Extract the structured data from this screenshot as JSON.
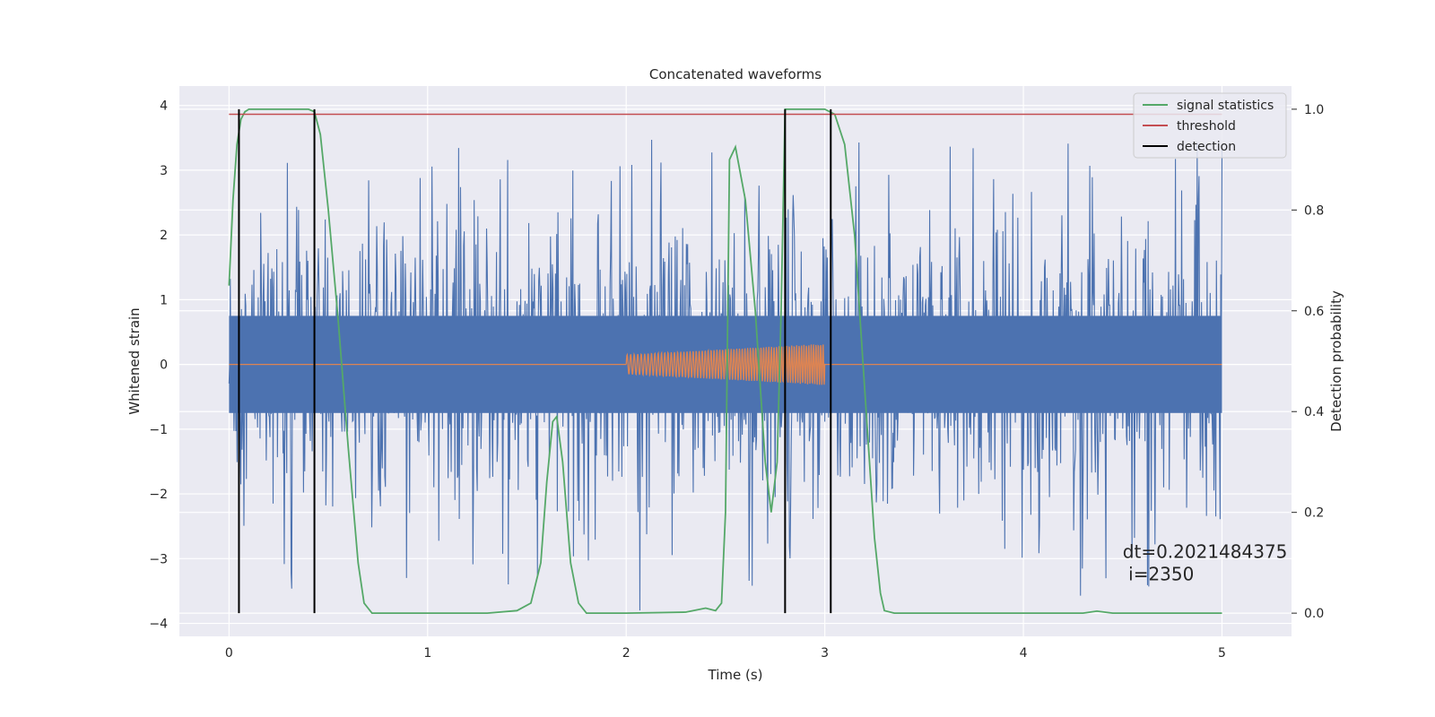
{
  "chart_data": {
    "type": "line",
    "title": "Concatenated waveforms",
    "xlabel": "Time (s)",
    "ylabel_left": "Whitened strain",
    "ylabel_right": "Detection probability",
    "xlim": [
      -0.25,
      5.35
    ],
    "ylim_left": [
      -4.2,
      4.3
    ],
    "ylim_right": [
      -0.046,
      1.046
    ],
    "x_ticks": [
      "0",
      "1",
      "2",
      "3",
      "4",
      "5"
    ],
    "y_left_ticks": [
      "4",
      "3",
      "2",
      "1",
      "0",
      "−1",
      "−2",
      "−3",
      "−4"
    ],
    "y_right_ticks": [
      "1.0",
      "0.8",
      "0.6",
      "0.4",
      "0.2",
      "0.0"
    ],
    "grid": true,
    "legend_position": "top-right",
    "legend": [
      {
        "label": "signal statistics",
        "color": "#55a868"
      },
      {
        "label": "threshold",
        "color": "#c44e52"
      },
      {
        "label": "detection",
        "color": "#000000"
      }
    ],
    "series": [
      {
        "role": "whitened-strain-noise",
        "color": "#4c72b0",
        "axis": "left",
        "x_range": [
          0,
          5
        ],
        "core_amplitude": 0.75,
        "spike_range": [
          -3.8,
          3.9
        ]
      },
      {
        "role": "injected-waveform",
        "color": "#dd8452",
        "axis": "left",
        "start": 0.0,
        "end": 5.0,
        "chirp_start": 2.0,
        "chirp_end": 3.0,
        "amplitude_start": 0.15,
        "amplitude_end": 0.32
      },
      {
        "name": "signal statistics",
        "color": "#55a868",
        "axis": "right",
        "x": [
          0.0,
          0.02,
          0.04,
          0.06,
          0.08,
          0.1,
          0.2,
          0.3,
          0.4,
          0.43,
          0.46,
          0.5,
          0.55,
          0.6,
          0.65,
          0.68,
          0.72,
          1.0,
          1.3,
          1.45,
          1.52,
          1.57,
          1.6,
          1.63,
          1.65,
          1.68,
          1.72,
          1.76,
          1.8,
          2.0,
          2.3,
          2.4,
          2.45,
          2.48,
          2.5,
          2.52,
          2.55,
          2.6,
          2.65,
          2.7,
          2.73,
          2.76,
          2.78,
          2.8,
          2.85,
          3.0,
          3.05,
          3.1,
          3.15,
          3.2,
          3.25,
          3.28,
          3.3,
          3.35,
          4.0,
          4.3,
          4.37,
          4.45,
          5.0
        ],
        "y": [
          0.65,
          0.82,
          0.93,
          0.98,
          0.995,
          1.0,
          1.0,
          1.0,
          1.0,
          0.995,
          0.95,
          0.8,
          0.58,
          0.33,
          0.1,
          0.02,
          0.0,
          0.0,
          0.0,
          0.005,
          0.02,
          0.1,
          0.26,
          0.38,
          0.39,
          0.3,
          0.1,
          0.02,
          0.0,
          0.0,
          0.002,
          0.01,
          0.005,
          0.02,
          0.2,
          0.9,
          0.925,
          0.82,
          0.6,
          0.3,
          0.2,
          0.3,
          0.6,
          1.0,
          1.0,
          1.0,
          0.99,
          0.93,
          0.75,
          0.45,
          0.15,
          0.04,
          0.005,
          0.0,
          0.0,
          0.0,
          0.004,
          0.0,
          0.0
        ]
      },
      {
        "name": "threshold",
        "color": "#c44e52",
        "axis": "right",
        "x": [
          0.0,
          5.0
        ],
        "y": [
          0.99,
          0.99
        ]
      }
    ],
    "detections": {
      "color": "#000000",
      "x": [
        0.05,
        0.43,
        2.8,
        3.03
      ],
      "y_range_right": [
        0.0,
        1.0
      ]
    },
    "annotations": [
      {
        "text": "dt=0.2021484375",
        "x": 4.5,
        "y_right": 0.11
      },
      {
        "text": " i=2350",
        "x": 4.5,
        "y_right": 0.065
      }
    ]
  }
}
